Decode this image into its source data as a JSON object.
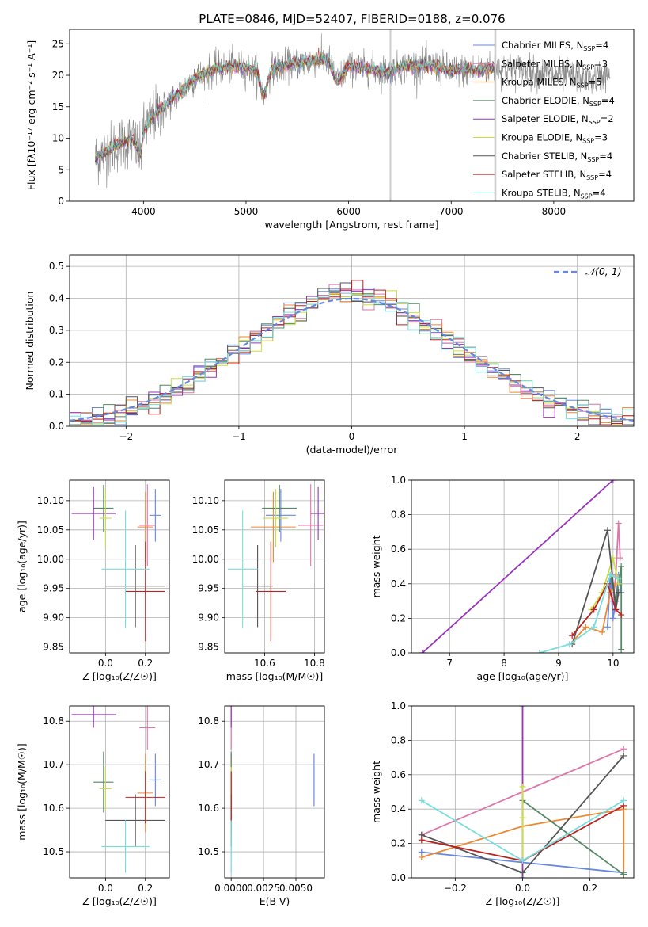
{
  "figure_title": "PLATE=0846, MJD=52407, FIBERID=0188, z=0.076",
  "colors": {
    "Chabrier MILES": "#6688dd",
    "Salpeter MILES": "#dd77aa",
    "Kroupa MILES": "#ee8833",
    "Chabrier ELODIE": "#558866",
    "Salpeter ELODIE": "#9933bb",
    "Kroupa ELODIE": "#ccdd44",
    "Chabrier STELIB": "#555555",
    "Salpeter STELIB": "#bb2222",
    "Kroupa STELIB": "#77dddd",
    "normal": "#6688dd",
    "spectrum_data": "#888888",
    "mask": "#c8c8c8",
    "grid": "#b0b0b0"
  },
  "chart_data": [
    {
      "id": "spectrum",
      "type": "line",
      "title": "PLATE=0846, MJD=52407, FIBERID=0188, z=0.076",
      "xlabel": "wavelength [Angstrom, rest frame]",
      "ylabel": "Flux [fλ10⁻¹⁷ erg cm⁻² s⁻¹ A⁻¹]",
      "xlim": [
        3280,
        8780
      ],
      "ylim": [
        0,
        27.3
      ],
      "xticks": [
        4000,
        5000,
        6000,
        7000,
        8000
      ],
      "yticks": [
        0,
        5,
        10,
        15,
        20,
        25
      ],
      "grid": false,
      "legend_position": "top-right",
      "legend": [
        {
          "model": "Chabrier MILES",
          "imf": "Chabrier",
          "lib": "MILES",
          "nssp": "4"
        },
        {
          "model": "Salpeter MILES",
          "imf": "Salpeter",
          "lib": "MILES",
          "nssp": "3"
        },
        {
          "model": "Kroupa MILES",
          "imf": "Kroupa",
          "lib": "MILES",
          "nssp": "5"
        },
        {
          "model": "Chabrier ELODIE",
          "imf": "Chabrier",
          "lib": "ELODIE",
          "nssp": "4"
        },
        {
          "model": "Salpeter ELODIE",
          "imf": "Salpeter",
          "lib": "ELODIE",
          "nssp": "2"
        },
        {
          "model": "Kroupa ELODIE",
          "imf": "Kroupa",
          "lib": "ELODIE",
          "nssp": "3"
        },
        {
          "model": "Chabrier STELIB",
          "imf": "Chabrier",
          "lib": "STELIB",
          "nssp": "4"
        },
        {
          "model": "Salpeter STELIB",
          "imf": "Salpeter",
          "lib": "STELIB",
          "nssp": "4"
        },
        {
          "model": "Kroupa STELIB",
          "imf": "Kroupa",
          "lib": "STELIB",
          "nssp": "4"
        }
      ],
      "continuum_anchors": [
        [
          3530,
          6.8
        ],
        [
          3600,
          7.5
        ],
        [
          3700,
          8.5
        ],
        [
          3800,
          9.5
        ],
        [
          3900,
          9.8
        ],
        [
          3970,
          7
        ],
        [
          4000,
          11
        ],
        [
          4100,
          13.5
        ],
        [
          4300,
          16.5
        ],
        [
          4500,
          19.5
        ],
        [
          4700,
          21
        ],
        [
          4900,
          21.5
        ],
        [
          5100,
          20.8
        ],
        [
          5175,
          16.5
        ],
        [
          5250,
          21
        ],
        [
          5500,
          22
        ],
        [
          5800,
          22.5
        ],
        [
          5890,
          19
        ],
        [
          6000,
          21.5
        ],
        [
          6200,
          21
        ],
        [
          6400,
          20.5
        ],
        [
          6563,
          21.5
        ],
        [
          6800,
          21.5
        ],
        [
          7000,
          20.8
        ],
        [
          7200,
          20.8
        ],
        [
          7400,
          21.2
        ],
        [
          7600,
          21
        ],
        [
          7800,
          20.5
        ],
        [
          8000,
          20
        ],
        [
          8200,
          19.8
        ],
        [
          8400,
          19.5
        ],
        [
          8500,
          20
        ]
      ],
      "masked_bands": [
        [
          6400,
          6410
        ],
        [
          7420,
          7440
        ]
      ],
      "model_x_range": [
        3530,
        7420
      ]
    },
    {
      "id": "residuals",
      "type": "histogram",
      "xlabel": "(data-model)/error",
      "ylabel": "Normed distribution",
      "xlim": [
        -2.5,
        2.5
      ],
      "ylim": [
        0,
        0.535
      ],
      "xticks": [
        -2,
        -1,
        0,
        1,
        2
      ],
      "yticks": [
        0.0,
        0.1,
        0.2,
        0.3,
        0.4,
        0.5
      ],
      "grid": true,
      "bin_width": 0.1,
      "legend_position": "top-right",
      "legend": [
        {
          "label": "𝒩(0, 1)",
          "style": "dashed"
        }
      ]
    },
    {
      "id": "age_vs_Z",
      "type": "scatter",
      "xlabel": "Z [log₁₀(Z/Z☉)]",
      "ylabel": "age  [log₁₀(age/yr)]",
      "xlim": [
        -0.18,
        0.32
      ],
      "ylim": [
        9.84,
        10.135
      ],
      "xticks": [
        0.0,
        0.2
      ],
      "yticks": [
        9.85,
        9.9,
        9.95,
        10.0,
        10.05,
        10.1
      ],
      "grid": true
    },
    {
      "id": "age_vs_mass",
      "type": "scatter",
      "xlabel": "mass [log₁₀(M/M☉)]",
      "ylabel": "",
      "xlim": [
        10.44,
        10.84
      ],
      "ylim": [
        9.84,
        10.135
      ],
      "xticks": [
        10.6,
        10.8
      ],
      "yticks": [
        9.85,
        9.9,
        9.95,
        10.0,
        10.05,
        10.1
      ],
      "grid": true
    },
    {
      "id": "weight_vs_age",
      "type": "line",
      "xlabel": "age  [log₁₀(age/yr)]",
      "ylabel": "mass weight",
      "xlim": [
        6.3,
        10.38
      ],
      "ylim": [
        0,
        1.0
      ],
      "xticks": [
        7,
        8,
        9,
        10
      ],
      "yticks": [
        0.0,
        0.2,
        0.4,
        0.6,
        0.8,
        1.0
      ],
      "grid": true
    },
    {
      "id": "mass_vs_Z",
      "type": "scatter",
      "xlabel": "Z [log₁₀(Z/Z☉)]",
      "ylabel": "mass [log₁₀(M/M☉)]",
      "xlim": [
        -0.18,
        0.32
      ],
      "ylim": [
        10.44,
        10.835
      ],
      "xticks": [
        0.0,
        0.2
      ],
      "yticks": [
        10.5,
        10.6,
        10.7,
        10.8
      ],
      "grid": true
    },
    {
      "id": "mass_vs_ebv",
      "type": "scatter",
      "xlabel": "E(B-V)",
      "ylabel": "",
      "xlim": [
        -0.0005,
        0.0072
      ],
      "ylim": [
        10.44,
        10.835
      ],
      "xticks": [
        0.0,
        0.0025,
        0.005
      ],
      "xtick_labels": [
        "0.0000",
        "0.0025",
        "0.0050"
      ],
      "yticks": [
        10.5,
        10.6,
        10.7,
        10.8
      ],
      "grid": true
    },
    {
      "id": "weight_vs_Z",
      "type": "line",
      "xlabel": "Z [log₁₀(Z/Z☉)]",
      "ylabel": "mass weight",
      "xlim": [
        -0.33,
        0.33
      ],
      "ylim": [
        0,
        1.0
      ],
      "xticks": [
        -0.2,
        0.0,
        0.2
      ],
      "yticks": [
        0.0,
        0.2,
        0.4,
        0.6,
        0.8,
        1.0
      ],
      "grid": true
    }
  ],
  "fits": [
    {
      "model": "Chabrier MILES",
      "Z": 0.25,
      "Zerr": 0.03,
      "age": 10.075,
      "age_err": 0.045,
      "mass": 10.665,
      "mass_err": 0.06,
      "ebv": 0.0064,
      "ebv_err": 0.0,
      "ages": [
        9.9,
        9.95,
        10.0,
        10.05,
        10.1,
        10.15
      ],
      "age_weights": [
        0.15,
        0.45,
        0.2,
        0.3,
        0.45,
        0.35
      ],
      "Zs": [
        -0.3,
        0.3
      ],
      "Z_weights": [
        0.15,
        0.03
      ]
    },
    {
      "model": "Salpeter MILES",
      "Z": 0.21,
      "Zerr": 0.04,
      "age": 10.058,
      "age_err": 0.07,
      "mass": 10.785,
      "mass_err": 0.05,
      "ebv": 0.0,
      "ebv_err": 0.0,
      "ages": [
        10.0,
        10.05,
        10.1,
        10.13
      ],
      "age_weights": [
        0.3,
        0.45,
        0.75,
        0.55
      ],
      "Zs": [
        -0.3,
        0.0,
        0.3
      ],
      "Z_weights": [
        0.25,
        0.5,
        0.75
      ]
    },
    {
      "model": "Kroupa MILES",
      "Z": 0.2,
      "Zerr": 0.04,
      "age": 10.055,
      "age_err": 0.06,
      "mass": 10.635,
      "mass_err": 0.09,
      "ebv": 0.0,
      "ebv_err": 0.0,
      "ages": [
        9.3,
        9.5,
        9.8,
        9.95,
        10.05
      ],
      "age_weights": [
        0.08,
        0.15,
        0.12,
        0.35,
        0.4
      ],
      "Zs": [
        -0.3,
        0.0,
        0.3,
        0.3
      ],
      "Z_weights": [
        0.12,
        0.3,
        0.4,
        0.02
      ]
    },
    {
      "model": "Chabrier ELODIE",
      "Z": -0.01,
      "Zerr": 0.05,
      "age": 10.087,
      "age_err": 0.04,
      "mass": 10.66,
      "mass_err": 0.07,
      "ebv": 0.0,
      "ebv_err": 0.0,
      "ages": [
        9.95,
        10.05,
        10.15,
        10.15
      ],
      "age_weights": [
        0.45,
        0.3,
        0.5,
        0.02
      ],
      "Zs": [
        0.0,
        0.0,
        0.3
      ],
      "Z_weights": [
        0.35,
        0.45,
        0.02
      ]
    },
    {
      "model": "Salpeter ELODIE",
      "Z": -0.06,
      "Zerr": 0.11,
      "age": 10.078,
      "age_err": 0.045,
      "mass": 10.815,
      "mass_err": 0.03,
      "ebv": 0.0,
      "ebv_err": 0.0,
      "ages": [
        6.5,
        10.0
      ],
      "age_weights": [
        0.0,
        1.0
      ],
      "Zs": [
        0.0,
        0.0
      ],
      "Z_weights": [
        0.0,
        1.0
      ]
    },
    {
      "model": "Kroupa ELODIE",
      "Z": 0.0,
      "Zerr": 0.03,
      "age": 10.07,
      "age_err": 0.05,
      "mass": 10.645,
      "mass_err": 0.05,
      "ebv": 0.0,
      "ebv_err": 0.0,
      "ages": [
        9.6,
        9.8,
        10.0,
        10.1
      ],
      "age_weights": [
        0.25,
        0.35,
        0.55,
        0.4
      ],
      "Zs": [
        0.0,
        0.0,
        0.0
      ],
      "Z_weights": [
        0.1,
        0.35,
        0.53
      ]
    },
    {
      "model": "Chabrier STELIB",
      "Z": 0.15,
      "Zerr": 0.15,
      "age": 9.954,
      "age_err": 0.07,
      "mass": 10.572,
      "mass_err": 0.06,
      "ebv": 0.0,
      "ebv_err": 0.0,
      "ages": [
        9.25,
        9.9,
        10.05,
        10.1
      ],
      "age_weights": [
        0.05,
        0.71,
        0.25,
        0.35
      ],
      "Zs": [
        -0.3,
        0.0,
        0.3
      ],
      "Z_weights": [
        0.25,
        0.03,
        0.71
      ]
    },
    {
      "model": "Salpeter STELIB",
      "Z": 0.2,
      "Zerr": 0.1,
      "age": 9.945,
      "age_err": 0.085,
      "mass": 10.625,
      "mass_err": 0.06,
      "ebv": 0.0,
      "ebv_err": 0.0,
      "ages": [
        9.25,
        9.65,
        9.9,
        10.05,
        10.15
      ],
      "age_weights": [
        0.1,
        0.25,
        0.4,
        0.25,
        0.22
      ],
      "Zs": [
        -0.3,
        0.0,
        0.3
      ],
      "Z_weights": [
        0.22,
        0.1,
        0.42
      ]
    },
    {
      "model": "Kroupa STELIB",
      "Z": 0.1,
      "Zerr": 0.12,
      "age": 9.983,
      "age_err": 0.1,
      "mass": 10.512,
      "mass_err": 0.06,
      "ebv": 0.0,
      "ebv_err": 0.0,
      "ages": [
        8.65,
        9.2,
        9.65,
        9.95,
        10.1
      ],
      "age_weights": [
        0.0,
        0.05,
        0.15,
        0.45,
        0.43
      ],
      "Zs": [
        -0.3,
        0.0,
        0.3
      ],
      "Z_weights": [
        0.45,
        0.1,
        0.45
      ]
    }
  ]
}
